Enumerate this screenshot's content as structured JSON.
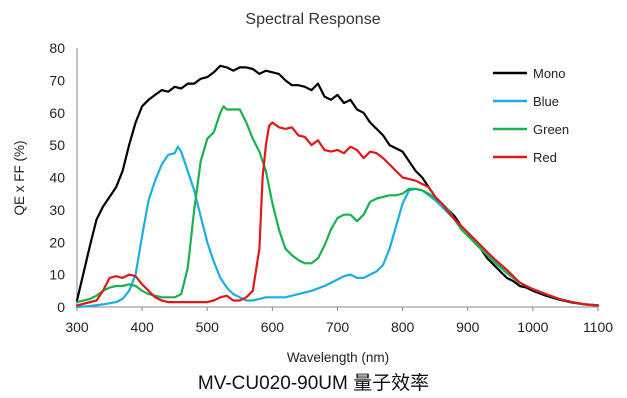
{
  "caption": "MV-CU020-90UM 量子效率",
  "chart_data": {
    "type": "line",
    "title": "Spectral Response",
    "xlabel": "Wavelength (nm)",
    "ylabel": "QE x FF (%)",
    "xlim": [
      300,
      1100
    ],
    "ylim": [
      0,
      80
    ],
    "xticks": [
      300,
      400,
      500,
      600,
      700,
      800,
      900,
      1000,
      1100
    ],
    "yticks": [
      0,
      10,
      20,
      30,
      40,
      50,
      60,
      70,
      80
    ],
    "grid": false,
    "legend": "top-right",
    "series": [
      {
        "name": "Mono",
        "color": "#000000",
        "x": [
          300,
          320,
          330,
          340,
          350,
          360,
          370,
          380,
          390,
          400,
          410,
          420,
          430,
          440,
          450,
          460,
          470,
          480,
          490,
          500,
          510,
          520,
          530,
          540,
          550,
          560,
          570,
          580,
          590,
          600,
          610,
          620,
          630,
          640,
          650,
          660,
          670,
          680,
          690,
          700,
          710,
          720,
          730,
          740,
          750,
          760,
          770,
          780,
          790,
          800,
          810,
          820,
          830,
          840,
          850,
          860,
          870,
          880,
          890,
          900,
          910,
          920,
          930,
          940,
          950,
          960,
          970,
          980,
          990,
          1000,
          1020,
          1040,
          1060,
          1080,
          1100
        ],
        "values": [
          2,
          19,
          27,
          31,
          34,
          37,
          42,
          50,
          57,
          62,
          64,
          65.5,
          67,
          66.5,
          68,
          67.5,
          69,
          69,
          70.5,
          71,
          72.5,
          74.5,
          74,
          73,
          74,
          74,
          73.5,
          72,
          73,
          72.5,
          72,
          70,
          68.5,
          68.5,
          68,
          67,
          69,
          65,
          64,
          65.5,
          63,
          64,
          61,
          60,
          57,
          55,
          53,
          50,
          49,
          48,
          45,
          42,
          40,
          37,
          34,
          32,
          30,
          28,
          25,
          23,
          20,
          18,
          15,
          13,
          11,
          9,
          8,
          6.5,
          6,
          5,
          3.5,
          2.3,
          1.4,
          0.8,
          0.5
        ]
      },
      {
        "name": "Blue",
        "color": "#1aaee5",
        "x": [
          300,
          320,
          340,
          360,
          370,
          380,
          390,
          400,
          410,
          420,
          430,
          440,
          450,
          455,
          460,
          470,
          480,
          490,
          500,
          510,
          520,
          530,
          540,
          550,
          560,
          570,
          580,
          590,
          600,
          620,
          640,
          660,
          680,
          700,
          710,
          720,
          730,
          740,
          750,
          760,
          770,
          780,
          790,
          800,
          810,
          820,
          830,
          840,
          850,
          860,
          870,
          880,
          890,
          900,
          920,
          940,
          960,
          980,
          1000,
          1020,
          1040,
          1060,
          1080,
          1100
        ],
        "values": [
          0,
          0.3,
          0.8,
          1.5,
          2.5,
          5,
          10,
          22,
          33,
          39,
          44,
          47,
          47.5,
          49.5,
          48,
          42,
          36,
          28,
          20,
          14,
          9,
          6,
          4,
          3,
          2,
          2,
          2.5,
          3,
          3,
          3,
          4,
          5,
          6.5,
          8.5,
          9.5,
          10,
          9,
          9,
          10,
          11,
          13,
          18,
          25,
          32,
          36,
          36.5,
          36,
          34.5,
          33,
          31,
          29,
          27,
          25,
          23,
          19,
          14.5,
          10.5,
          7.5,
          5.5,
          4,
          2.5,
          1.5,
          0.8,
          0.4
        ]
      },
      {
        "name": "Green",
        "color": "#1ab050",
        "x": [
          300,
          320,
          330,
          340,
          350,
          360,
          370,
          380,
          390,
          400,
          410,
          420,
          430,
          440,
          450,
          460,
          470,
          480,
          490,
          500,
          510,
          520,
          525,
          530,
          540,
          550,
          560,
          570,
          580,
          590,
          600,
          610,
          620,
          630,
          640,
          650,
          660,
          670,
          680,
          690,
          700,
          710,
          720,
          730,
          740,
          750,
          760,
          770,
          780,
          790,
          800,
          810,
          820,
          830,
          840,
          850,
          860,
          870,
          880,
          890,
          900,
          920,
          940,
          960,
          980,
          1000,
          1020,
          1040,
          1060,
          1080,
          1100
        ],
        "values": [
          1.5,
          2.5,
          3.5,
          5,
          6,
          6.5,
          6.5,
          7,
          6.5,
          5,
          4,
          3.5,
          3,
          3,
          3,
          4,
          12,
          30,
          45,
          52,
          54,
          60,
          62,
          61,
          61,
          61,
          57,
          52,
          48,
          42,
          32,
          24,
          18,
          16,
          14.5,
          13.5,
          13.5,
          15,
          19,
          24,
          27.5,
          28.5,
          28.5,
          26.5,
          28.5,
          32.5,
          33.5,
          34,
          34.5,
          34.5,
          35,
          36.5,
          36.5,
          36,
          35,
          33.5,
          32,
          30,
          27,
          24,
          22,
          18,
          14,
          10.5,
          7.5,
          5.5,
          4,
          2.5,
          1.5,
          0.8,
          0.5
        ]
      },
      {
        "name": "Red",
        "color": "#e01818",
        "x": [
          300,
          330,
          340,
          350,
          360,
          370,
          380,
          390,
          400,
          410,
          420,
          430,
          440,
          450,
          460,
          480,
          500,
          510,
          520,
          530,
          540,
          550,
          560,
          570,
          580,
          585,
          590,
          595,
          600,
          610,
          620,
          630,
          640,
          650,
          660,
          670,
          680,
          690,
          700,
          710,
          720,
          730,
          740,
          750,
          760,
          770,
          780,
          790,
          800,
          810,
          820,
          830,
          840,
          850,
          860,
          870,
          880,
          890,
          900,
          920,
          940,
          960,
          980,
          1000,
          1020,
          1040,
          1060,
          1080,
          1100
        ],
        "values": [
          0.5,
          2,
          5,
          9,
          9.5,
          9,
          10,
          9.5,
          7,
          5,
          3,
          2,
          1.5,
          1.5,
          1.5,
          1.5,
          1.5,
          2,
          3,
          3.5,
          2,
          2,
          3,
          5,
          18,
          40,
          50,
          56,
          57,
          55.5,
          55,
          55.5,
          53,
          52.5,
          50,
          51.5,
          48.5,
          48,
          48.5,
          47.5,
          49.5,
          48.5,
          46,
          48,
          47.5,
          46,
          44,
          42,
          40,
          39.5,
          39,
          38,
          37,
          34,
          32,
          29.5,
          27,
          25,
          23,
          19,
          15,
          11.5,
          7.5,
          5.5,
          4,
          2.5,
          1.5,
          0.8,
          0.5
        ]
      }
    ]
  }
}
